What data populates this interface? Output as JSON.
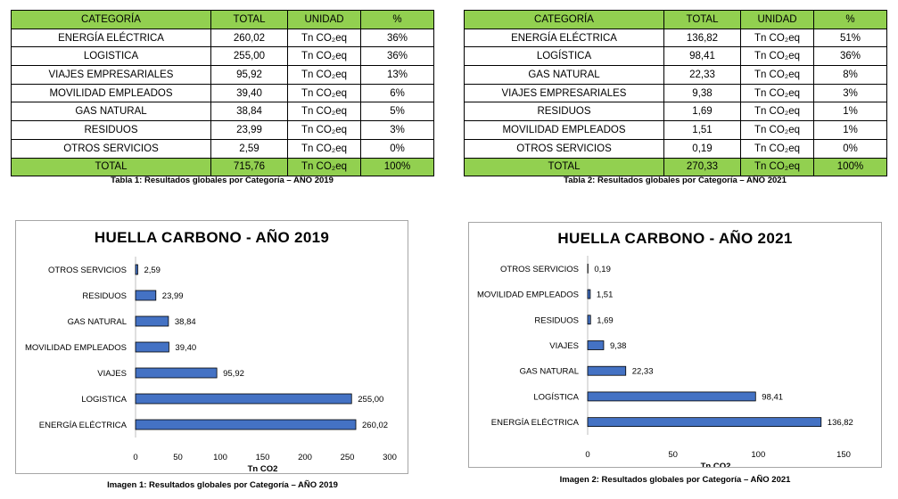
{
  "tables": [
    {
      "headers": [
        "CATEGORÍA",
        "TOTAL",
        "UNIDAD",
        "%"
      ],
      "rows": [
        [
          "ENERGÍA ELÉCTRICA",
          "260,02",
          "Tn CO₂eq",
          "36%"
        ],
        [
          "LOGISTICA",
          "255,00",
          "Tn CO₂eq",
          "36%"
        ],
        [
          "VIAJES EMPRESARIALES",
          "95,92",
          "Tn CO₂eq",
          "13%"
        ],
        [
          "MOVILIDAD EMPLEADOS",
          "39,40",
          "Tn CO₂eq",
          "6%"
        ],
        [
          "GAS NATURAL",
          "38,84",
          "Tn CO₂eq",
          "5%"
        ],
        [
          "RESIDUOS",
          "23,99",
          "Tn CO₂eq",
          "3%"
        ],
        [
          "OTROS SERVICIOS",
          "2,59",
          "Tn CO₂eq",
          "0%"
        ]
      ],
      "total": [
        "TOTAL",
        "715,76",
        "Tn CO₂eq",
        "100%"
      ],
      "caption": "Tabla 1: Resultados globales por Categoría – AÑO 2019"
    },
    {
      "headers": [
        "CATEGORÍA",
        "TOTAL",
        "UNIDAD",
        "%"
      ],
      "rows": [
        [
          "ENERGÍA ELÉCTRICA",
          "136,82",
          "Tn CO₂eq",
          "51%"
        ],
        [
          "LOGÍSTICA",
          "98,41",
          "Tn CO₂eq",
          "36%"
        ],
        [
          "GAS NATURAL",
          "22,33",
          "Tn CO₂eq",
          "8%"
        ],
        [
          "VIAJES EMPRESARIALES",
          "9,38",
          "Tn CO₂eq",
          "3%"
        ],
        [
          "RESIDUOS",
          "1,69",
          "Tn CO₂eq",
          "1%"
        ],
        [
          "MOVILIDAD EMPLEADOS",
          "1,51",
          "Tn CO₂eq",
          "1%"
        ],
        [
          "OTROS SERVICIOS",
          "0,19",
          "Tn CO₂eq",
          "0%"
        ]
      ],
      "total": [
        "TOTAL",
        "270,33",
        "Tn CO₂eq",
        "100%"
      ],
      "caption": "Tabla 2: Resultados globales por Categoría – AÑO 2021"
    }
  ],
  "chart_data": [
    {
      "type": "bar",
      "orientation": "horizontal",
      "title": "HUELLA CARBONO - AÑO 2019",
      "xlabel": "Tn CO2",
      "ylabel": "",
      "categories": [
        "OTROS SERVICIOS",
        "RESIDUOS",
        "GAS NATURAL",
        "MOVILIDAD EMPLEADOS",
        "VIAJES",
        "LOGISTICA",
        "ENERGÍA ELÉCTRICA"
      ],
      "values": [
        2.59,
        23.99,
        38.84,
        39.4,
        95.92,
        255.0,
        260.02
      ],
      "value_labels": [
        "2,59",
        "23,99",
        "38,84",
        "39,40",
        "95,92",
        "255,00",
        "260,02"
      ],
      "xlim": [
        0,
        300
      ],
      "xticks": [
        0,
        50,
        100,
        150,
        200,
        250,
        300
      ],
      "grid": false,
      "bar_color": "#4472c4",
      "caption": "Imagen 1: Resultados globales por Categoría – AÑO 2019"
    },
    {
      "type": "bar",
      "orientation": "horizontal",
      "title": "HUELLA CARBONO - AÑO 2021",
      "xlabel": "Tn CO2",
      "ylabel": "",
      "categories": [
        "OTROS SERVICIOS",
        "MOVILIDAD EMPLEADOS",
        "RESIDUOS",
        "VIAJES",
        "GAS NATURAL",
        "LOGÍSTICA",
        "ENERGÍA ELÉCTRICA"
      ],
      "values": [
        0.19,
        1.51,
        1.69,
        9.38,
        22.33,
        98.41,
        136.82
      ],
      "value_labels": [
        "0,19",
        "1,51",
        "1,69",
        "9,38",
        "22,33",
        "98,41",
        "136,82"
      ],
      "xlim": [
        0,
        150
      ],
      "xticks": [
        0,
        50,
        100,
        150
      ],
      "grid": false,
      "bar_color": "#4472c4",
      "caption": "Imagen 2: Resultados globales por Categoría – AÑO 2021"
    }
  ]
}
